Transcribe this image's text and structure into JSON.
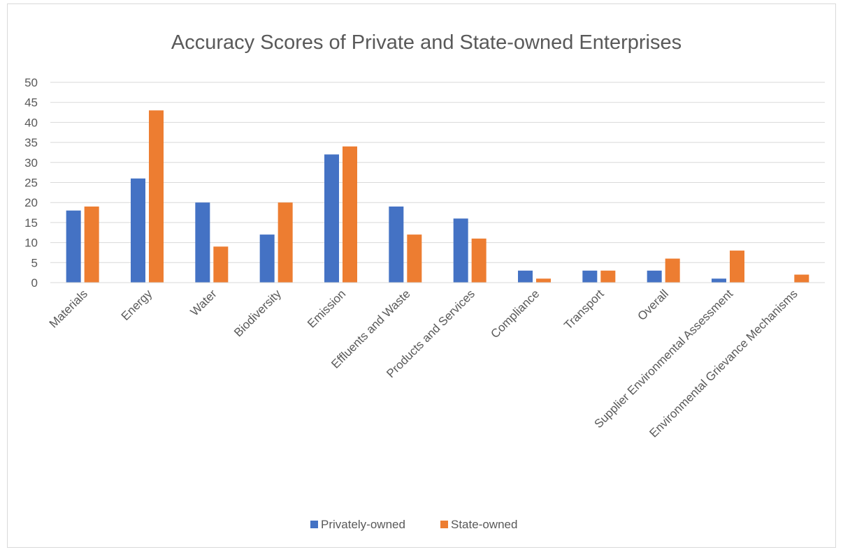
{
  "chart_data": {
    "type": "bar",
    "title": "Accuracy Scores of Private and State-owned Enterprises",
    "categories": [
      "Materials",
      "Energy",
      "Water",
      "Biodiversity",
      "Emission",
      "Effluents and Waste",
      "Products and Services",
      "Compliance",
      "Transport",
      "Overall",
      "Supplier Environmental Assessment",
      "Environmental Grievance Mechanisms"
    ],
    "series": [
      {
        "name": "Privately-owned",
        "color": "#4472c4",
        "values": [
          18,
          26,
          20,
          12,
          32,
          19,
          16,
          3,
          3,
          3,
          1,
          0
        ]
      },
      {
        "name": "State-owned",
        "color": "#ed7d31",
        "values": [
          19,
          43,
          9,
          20,
          34,
          12,
          11,
          1,
          3,
          6,
          8,
          2
        ]
      }
    ],
    "yticks": [
      "0",
      "5",
      "10",
      "15",
      "20",
      "25",
      "30",
      "35",
      "40",
      "45",
      "50"
    ],
    "ylim": [
      0,
      50
    ],
    "grid": true,
    "legend_position": "bottom"
  }
}
